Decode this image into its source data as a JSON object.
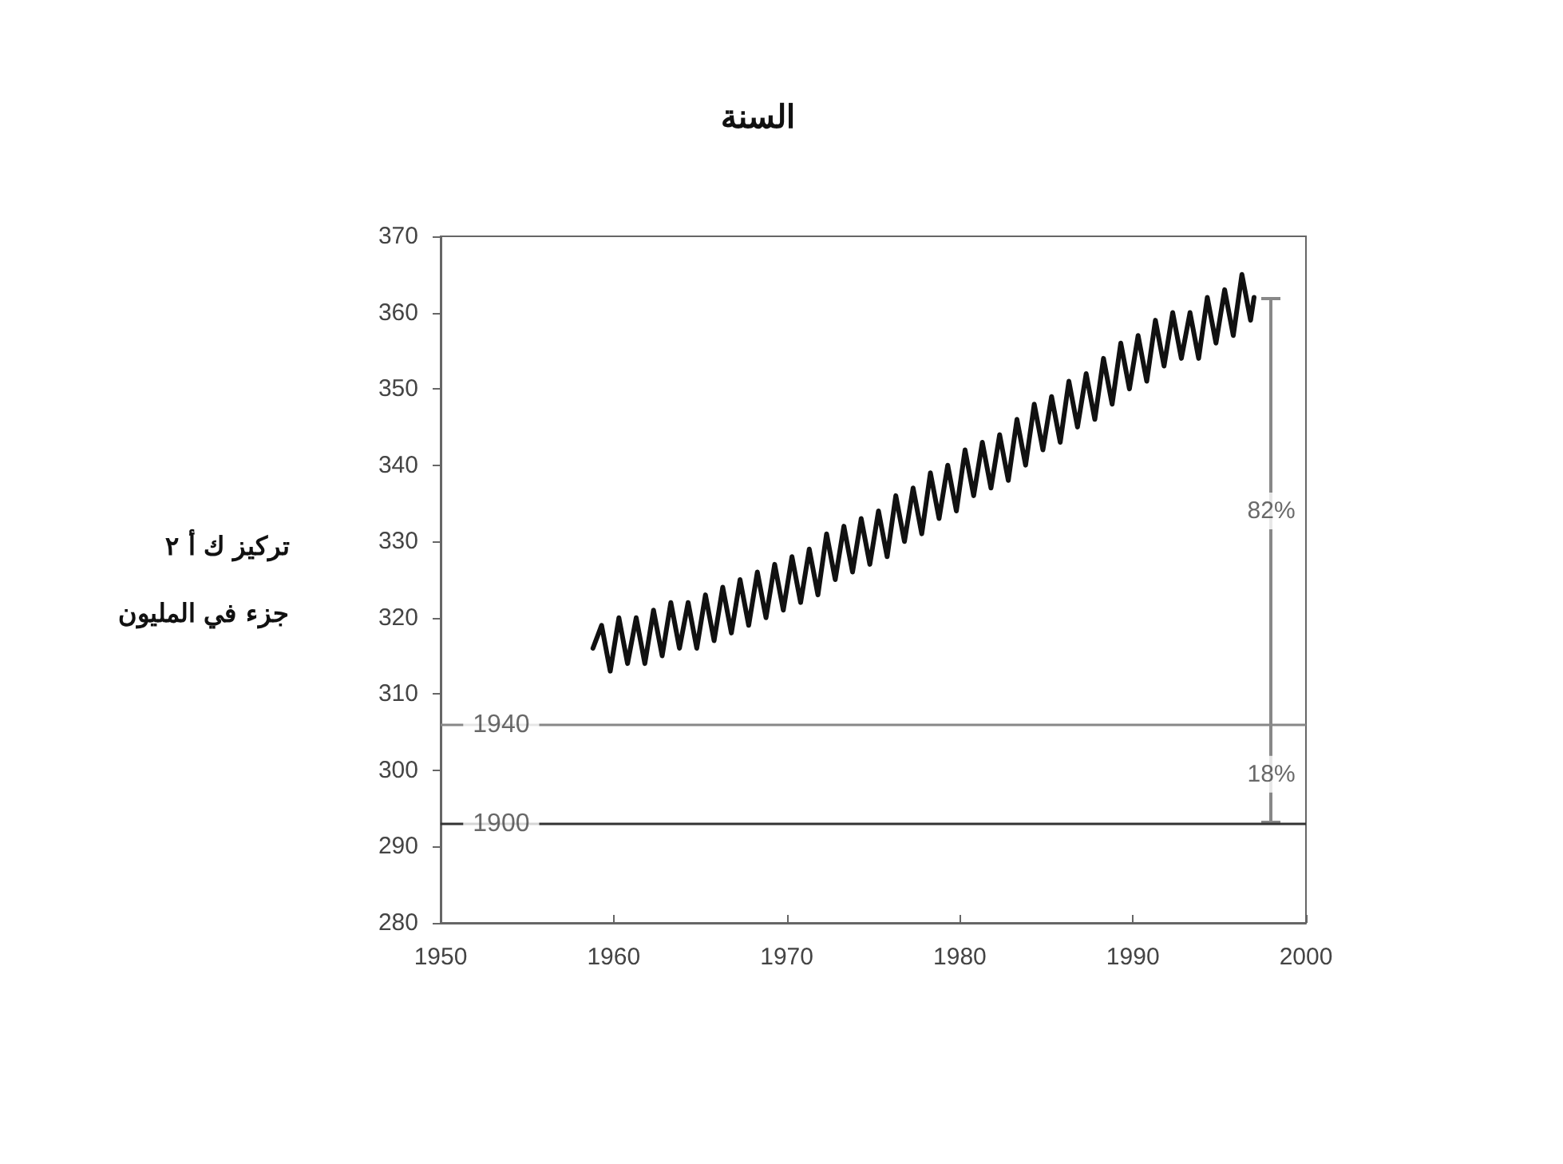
{
  "chart_data": {
    "type": "line",
    "title": "السنة",
    "ylabel": "تركيز ك أ ٢\nجزء في المليون",
    "xlim": [
      1950,
      2000
    ],
    "xticks": [
      1950,
      1960,
      1970,
      1980,
      1990,
      2000
    ],
    "ylim": [
      280,
      370
    ],
    "yticks": [
      280,
      290,
      300,
      310,
      320,
      330,
      340,
      350,
      360,
      370
    ],
    "grid": false,
    "marker": "none",
    "line_style": "solid",
    "series": [
      {
        "color": "#111111",
        "x": [
          1958.8,
          1959.3,
          1959.8,
          1960.3,
          1960.8,
          1961.3,
          1961.8,
          1962.3,
          1962.8,
          1963.3,
          1963.8,
          1964.3,
          1964.8,
          1965.3,
          1965.8,
          1966.3,
          1966.8,
          1967.3,
          1967.8,
          1968.3,
          1968.8,
          1969.3,
          1969.8,
          1970.3,
          1970.8,
          1971.3,
          1971.8,
          1972.3,
          1972.8,
          1973.3,
          1973.8,
          1974.3,
          1974.8,
          1975.3,
          1975.8,
          1976.3,
          1976.8,
          1977.3,
          1977.8,
          1978.3,
          1978.8,
          1979.3,
          1979.8,
          1980.3,
          1980.8,
          1981.3,
          1981.8,
          1982.3,
          1982.8,
          1983.3,
          1983.8,
          1984.3,
          1984.8,
          1985.3,
          1985.8,
          1986.3,
          1986.8,
          1987.3,
          1987.8,
          1988.3,
          1988.8,
          1989.3,
          1989.8,
          1990.3,
          1990.8,
          1991.3,
          1991.8,
          1992.3,
          1992.8,
          1993.3,
          1993.8,
          1994.3,
          1994.8,
          1995.3,
          1995.8,
          1996.3,
          1996.8,
          1997.0
        ],
        "values": [
          316,
          319,
          313,
          320,
          314,
          320,
          314,
          321,
          315,
          322,
          316,
          322,
          316,
          323,
          317,
          324,
          318,
          325,
          319,
          326,
          320,
          327,
          321,
          328,
          322,
          329,
          323,
          331,
          325,
          332,
          326,
          333,
          327,
          334,
          328,
          336,
          330,
          337,
          331,
          339,
          333,
          340,
          334,
          342,
          336,
          343,
          337,
          344,
          338,
          346,
          340,
          348,
          342,
          349,
          343,
          351,
          345,
          352,
          346,
          354,
          348,
          356,
          350,
          357,
          351,
          359,
          353,
          360,
          354,
          360,
          354,
          362,
          356,
          363,
          357,
          365,
          359,
          362
        ]
      }
    ],
    "ref_lines": [
      {
        "axis": "y",
        "value": 306,
        "color": "#888888"
      },
      {
        "axis": "y",
        "value": 293,
        "color": "#333333"
      }
    ],
    "annotations": [
      "82%",
      "18%",
      {
        "text": "1940",
        "y": 306
      },
      {
        "text": "1900",
        "y": 293
      }
    ]
  }
}
